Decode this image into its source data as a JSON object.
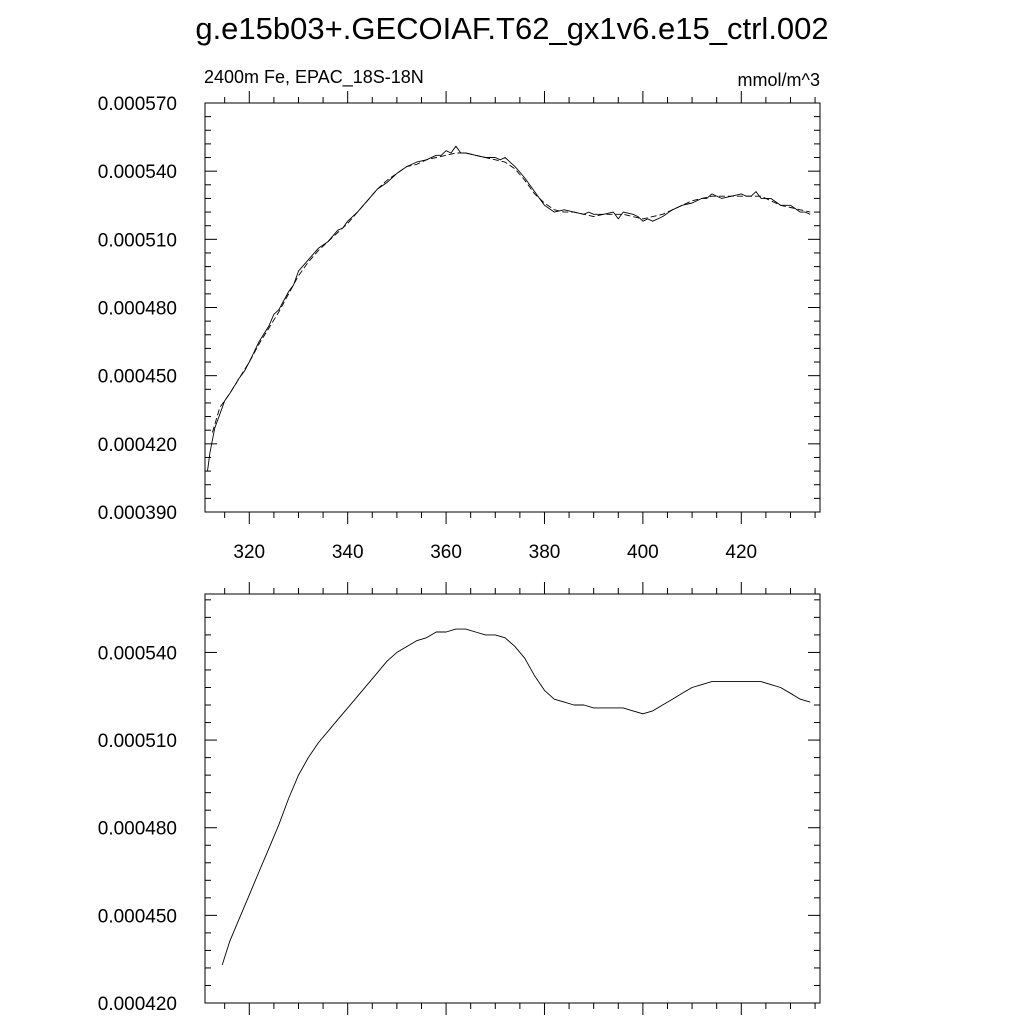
{
  "figure": {
    "title": "g.e15b03+.GECOIAF.T62_gx1v6.e15_ctrl.002"
  },
  "chart_data": [
    {
      "type": "line",
      "title": "",
      "left_label": "2400m Fe, EPAC_18S-18N",
      "right_label": "mmol/m^3",
      "xlabel": "",
      "ylabel": "",
      "xlim": [
        311,
        436
      ],
      "ylim": [
        0.00039,
        0.00057
      ],
      "x_ticks": [
        320,
        340,
        360,
        380,
        400,
        420
      ],
      "x_tick_labels": [
        "320",
        "340",
        "360",
        "380",
        "400",
        "420"
      ],
      "y_ticks": [
        0.00039,
        0.00042,
        0.00045,
        0.00048,
        0.00051,
        0.00054,
        0.00057
      ],
      "y_tick_labels": [
        "0.000390",
        "0.000420",
        "0.000450",
        "0.000480",
        "0.000510",
        "0.000540",
        "0.000570"
      ],
      "grid": false,
      "series": [
        {
          "style": "solid",
          "x": [
            311.5,
            312,
            313,
            314,
            315,
            316,
            318,
            319,
            320,
            322,
            324,
            325,
            326,
            328,
            329,
            330,
            332,
            334,
            336,
            338,
            339,
            340,
            342,
            344,
            346,
            348,
            350,
            352,
            354,
            356,
            358,
            359,
            360,
            361,
            362,
            363,
            364,
            366,
            368,
            369,
            370,
            371,
            372,
            373,
            374,
            376,
            378,
            380,
            382,
            384,
            386,
            388,
            389,
            390,
            392,
            394,
            395,
            396,
            398,
            399,
            400,
            401,
            402,
            404,
            406,
            408,
            410,
            412,
            413,
            414,
            416,
            418,
            420,
            421,
            422,
            423,
            424,
            426,
            428,
            430,
            432,
            433,
            434
          ],
          "y": [
            0.000408,
            0.000416,
            0.000427,
            0.000433,
            0.000439,
            0.000442,
            0.000449,
            0.000452,
            0.000456,
            0.000465,
            0.000472,
            0.000477,
            0.000479,
            0.000487,
            0.00049,
            0.000496,
            0.000501,
            0.000506,
            0.000509,
            0.000514,
            0.000515,
            0.000518,
            0.000522,
            0.000527,
            0.000532,
            0.000535,
            0.000539,
            0.000542,
            0.000544,
            0.000545,
            0.000547,
            0.000547,
            0.000549,
            0.000548,
            0.000551,
            0.000548,
            0.000548,
            0.000547,
            0.000546,
            0.000546,
            0.000546,
            0.000545,
            0.000546,
            0.000544,
            0.000542,
            0.000537,
            0.000531,
            0.000525,
            0.000522,
            0.000523,
            0.000522,
            0.000521,
            0.000522,
            0.000521,
            0.000521,
            0.000522,
            0.000519,
            0.000522,
            0.000521,
            0.00052,
            0.000518,
            0.000519,
            0.000518,
            0.00052,
            0.000523,
            0.000525,
            0.000526,
            0.000528,
            0.000528,
            0.00053,
            0.000528,
            0.000529,
            0.00053,
            0.000529,
            0.000529,
            0.000531,
            0.000528,
            0.000528,
            0.000525,
            0.000525,
            0.000522,
            0.000522,
            0.000521
          ]
        },
        {
          "style": "dashed",
          "x": [
            312.5,
            314,
            316,
            318,
            320,
            322,
            324,
            326,
            328,
            330,
            332,
            334,
            336,
            338,
            340,
            342,
            344,
            346,
            348,
            350,
            352,
            354,
            356,
            358,
            360,
            362,
            364,
            366,
            368,
            370,
            372,
            374,
            376,
            378,
            380,
            382,
            384,
            386,
            388,
            390,
            392,
            394,
            396,
            398,
            400,
            402,
            404,
            406,
            408,
            410,
            412,
            414,
            416,
            418,
            420,
            422,
            424,
            426,
            428,
            430,
            432,
            434
          ],
          "y": [
            0.000425,
            0.000436,
            0.000442,
            0.000449,
            0.000456,
            0.000464,
            0.000471,
            0.000478,
            0.000486,
            0.000494,
            0.0005,
            0.000505,
            0.000509,
            0.000513,
            0.000517,
            0.000522,
            0.000527,
            0.000532,
            0.000536,
            0.000539,
            0.000542,
            0.000543,
            0.000545,
            0.000546,
            0.000547,
            0.000548,
            0.000548,
            0.000547,
            0.000546,
            0.000545,
            0.000544,
            0.000541,
            0.000536,
            0.00053,
            0.000526,
            0.000523,
            0.000522,
            0.000522,
            0.000521,
            0.00052,
            0.000521,
            0.000521,
            0.000521,
            0.00052,
            0.000519,
            0.00052,
            0.000521,
            0.000523,
            0.000525,
            0.000527,
            0.000528,
            0.000529,
            0.000529,
            0.000529,
            0.000529,
            0.000529,
            0.000529,
            0.000527,
            0.000525,
            0.000524,
            0.000523,
            0.000522
          ]
        }
      ]
    },
    {
      "type": "line",
      "title": "",
      "xlabel": "",
      "ylabel": "",
      "xlim": [
        311,
        436
      ],
      "ylim": [
        0.00042,
        0.00056
      ],
      "x_ticks": [
        320,
        340,
        360,
        380,
        400,
        420
      ],
      "y_ticks": [
        0.00042,
        0.00045,
        0.00048,
        0.00051,
        0.00054
      ],
      "y_tick_labels": [
        "0.000420",
        "0.000450",
        "0.000480",
        "0.000510",
        "0.000540"
      ],
      "grid": false,
      "series": [
        {
          "style": "solid",
          "x": [
            314.5,
            316,
            318,
            320,
            322,
            324,
            326,
            328,
            330,
            332,
            334,
            336,
            338,
            340,
            342,
            344,
            346,
            348,
            350,
            352,
            354,
            356,
            358,
            360,
            362,
            364,
            366,
            368,
            370,
            372,
            374,
            376,
            378,
            380,
            382,
            384,
            386,
            388,
            390,
            392,
            394,
            396,
            398,
            400,
            402,
            404,
            406,
            408,
            410,
            412,
            414,
            416,
            418,
            420,
            422,
            424,
            426,
            428,
            430,
            432,
            434
          ],
          "y": [
            0.000433,
            0.000441,
            0.000449,
            0.000457,
            0.000465,
            0.000473,
            0.000481,
            0.00049,
            0.000498,
            0.000504,
            0.000509,
            0.000513,
            0.000517,
            0.000521,
            0.000525,
            0.000529,
            0.000533,
            0.000537,
            0.00054,
            0.000542,
            0.000544,
            0.000545,
            0.000547,
            0.000547,
            0.000548,
            0.000548,
            0.000547,
            0.000546,
            0.000546,
            0.000545,
            0.000542,
            0.000538,
            0.000532,
            0.000527,
            0.000524,
            0.000523,
            0.000522,
            0.000522,
            0.000521,
            0.000521,
            0.000521,
            0.000521,
            0.00052,
            0.000519,
            0.00052,
            0.000522,
            0.000524,
            0.000526,
            0.000528,
            0.000529,
            0.00053,
            0.00053,
            0.00053,
            0.00053,
            0.00053,
            0.00053,
            0.000529,
            0.000528,
            0.000526,
            0.000524,
            0.000523
          ]
        }
      ]
    }
  ]
}
